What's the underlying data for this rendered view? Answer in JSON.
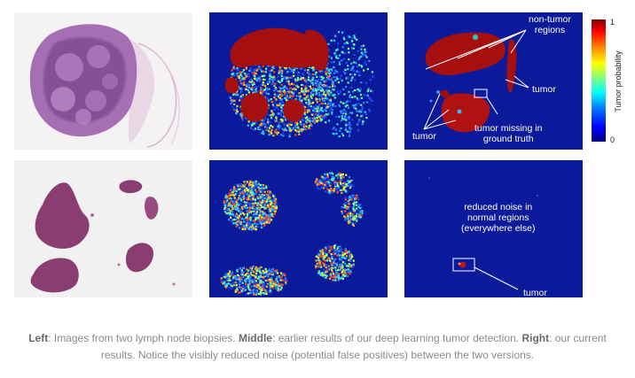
{
  "colors": {
    "heatmap_bg": "#0a1a9a",
    "tumor": "#a50f0f",
    "he_tissue": "#9b59a8",
    "he_bg": "#f3f1f2"
  },
  "annotations": {
    "non_tumor_regions": "non-tumor\nregions",
    "tumor_right": "tumor",
    "tumor_left": "tumor",
    "tumor_missing": "tumor missing in\nground truth",
    "reduced_noise": "reduced noise in\nnormal regions\n(everywhere else)",
    "tumor_bottom": "tumor"
  },
  "colorbar": {
    "label": "Tumor probability",
    "max_tick": "1",
    "min_tick": "0"
  },
  "caption": {
    "left_label": "Left",
    "left_text": ": Images from two lymph node biopsies. ",
    "middle_label": "Middle",
    "middle_text": ": earlier results of our deep learning tumor detection. ",
    "right_label": "Right",
    "right_text": ": our current results. Notice the visibly reduced noise (potential false positives) between the two versions."
  }
}
